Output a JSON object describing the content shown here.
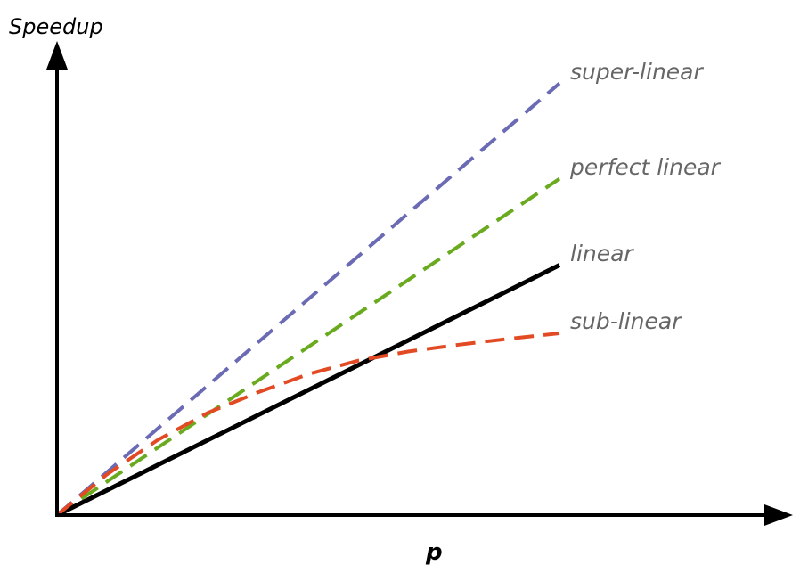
{
  "chart_data": {
    "type": "line",
    "title": "",
    "xlabel": "p",
    "ylabel": "Speedup",
    "grid": false,
    "legend": "none",
    "series": [
      {
        "name": "super-linear",
        "style": "dashed",
        "color": "#6b6bb5",
        "x": [
          0,
          1
        ],
        "y": [
          0,
          0.95
        ]
      },
      {
        "name": "perfect linear",
        "style": "dashed",
        "color": "#6aaa1f",
        "x": [
          0,
          1
        ],
        "y": [
          0,
          0.74
        ]
      },
      {
        "name": "linear",
        "style": "solid",
        "color": "#000000",
        "x": [
          0,
          1
        ],
        "y": [
          0,
          0.55
        ]
      },
      {
        "name": "sub-linear",
        "style": "dashed",
        "color": "#e24a24",
        "x": [
          0,
          0.1,
          0.2,
          0.3,
          0.4,
          0.5,
          0.6,
          0.7,
          0.8,
          0.9,
          1.0
        ],
        "y": [
          0,
          0.09,
          0.165,
          0.225,
          0.27,
          0.31,
          0.34,
          0.36,
          0.375,
          0.388,
          0.4
        ]
      }
    ]
  }
}
